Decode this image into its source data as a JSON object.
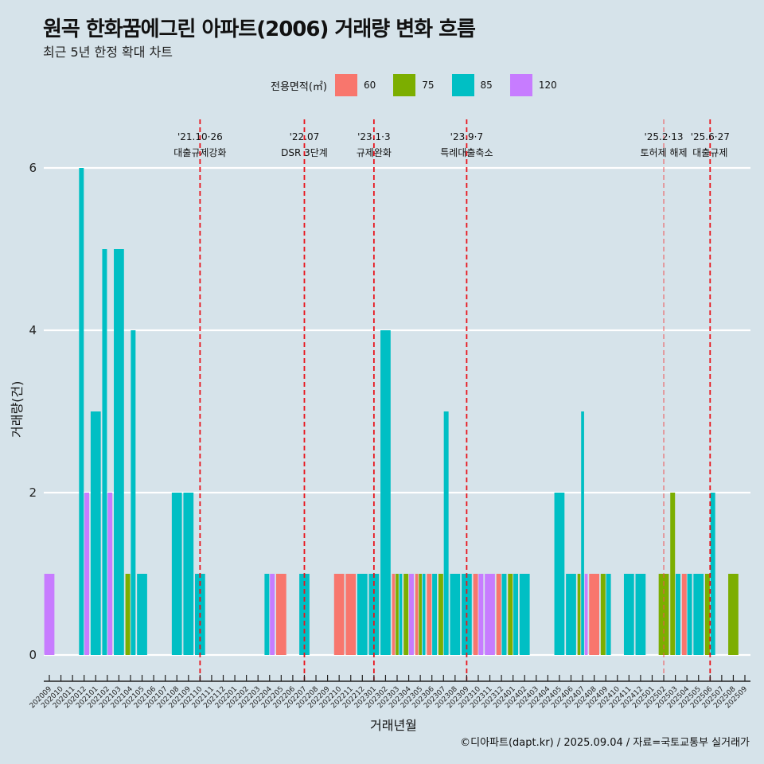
{
  "title": "원곡 한화꿈에그린 아파트(2006) 거래량 변화 흐름",
  "subtitle": "최근 5년 한정 확대 차트",
  "caption": "©디아파트(dapt.kr) / 2025.09.04 / 자료=국토교통부 실거래가",
  "legend": {
    "title": "전용면적(㎡)",
    "items": [
      {
        "label": "60",
        "color": "#F8766D"
      },
      {
        "label": "75",
        "color": "#7CAE00"
      },
      {
        "label": "85",
        "color": "#00BFC4"
      },
      {
        "label": "120",
        "color": "#C77CFF"
      }
    ]
  },
  "chart_data": {
    "type": "bar",
    "title": "원곡 한화꿈에그린 아파트(2006) 거래량 변화 흐름",
    "subtitle": "최근 5년 한정 확대 차트",
    "xlabel": "거래년월",
    "ylabel": "거래량(건)",
    "ylim": [
      0,
      6
    ],
    "yticks": [
      0,
      2,
      4,
      6
    ],
    "grid": "horizontal major",
    "legend_position": "top",
    "categories": [
      "202009",
      "202010",
      "202011",
      "202012",
      "202101",
      "202102",
      "202103",
      "202104",
      "202105",
      "202106",
      "202107",
      "202108",
      "202109",
      "202110",
      "202111",
      "202112",
      "202201",
      "202202",
      "202203",
      "202204",
      "202205",
      "202206",
      "202207",
      "202208",
      "202209",
      "202210",
      "202211",
      "202212",
      "202301",
      "202302",
      "202303",
      "202304",
      "202305",
      "202306",
      "202307",
      "202308",
      "202309",
      "202310",
      "202311",
      "202312",
      "202401",
      "202402",
      "202403",
      "202404",
      "202405",
      "202406",
      "202407",
      "202408",
      "202409",
      "202410",
      "202411",
      "202412",
      "202501",
      "202502",
      "202503",
      "202504",
      "202505",
      "202506",
      "202507",
      "202508",
      "202509"
    ],
    "bars": [
      {
        "month": "202009",
        "groups": [
          {
            "area": "120",
            "count": 1
          }
        ]
      },
      {
        "month": "202012",
        "groups": [
          {
            "area": "85",
            "count": 6
          },
          {
            "area": "120",
            "count": 2
          }
        ]
      },
      {
        "month": "202101",
        "groups": [
          {
            "area": "85",
            "count": 3
          }
        ]
      },
      {
        "month": "202102",
        "groups": [
          {
            "area": "85",
            "count": 5
          },
          {
            "area": "120",
            "count": 2
          }
        ]
      },
      {
        "month": "202103",
        "groups": [
          {
            "area": "85",
            "count": 5
          }
        ]
      },
      {
        "month": "202104",
        "groups": [
          {
            "area": "75",
            "count": 1
          },
          {
            "area": "85",
            "count": 4
          }
        ]
      },
      {
        "month": "202105",
        "groups": [
          {
            "area": "85",
            "count": 1
          }
        ]
      },
      {
        "month": "202108",
        "groups": [
          {
            "area": "85",
            "count": 2
          }
        ]
      },
      {
        "month": "202109",
        "groups": [
          {
            "area": "85",
            "count": 2
          }
        ]
      },
      {
        "month": "202110",
        "groups": [
          {
            "area": "85",
            "count": 1
          }
        ]
      },
      {
        "month": "202204",
        "groups": [
          {
            "area": "85",
            "count": 1
          },
          {
            "area": "120",
            "count": 1
          }
        ]
      },
      {
        "month": "202205",
        "groups": [
          {
            "area": "60",
            "count": 1
          }
        ]
      },
      {
        "month": "202207",
        "groups": [
          {
            "area": "85",
            "count": 1
          }
        ]
      },
      {
        "month": "202210",
        "groups": [
          {
            "area": "60",
            "count": 1
          }
        ]
      },
      {
        "month": "202211",
        "groups": [
          {
            "area": "60",
            "count": 1
          }
        ]
      },
      {
        "month": "202212",
        "groups": [
          {
            "area": "85",
            "count": 1
          }
        ]
      },
      {
        "month": "202301",
        "groups": [
          {
            "area": "85",
            "count": 1
          }
        ]
      },
      {
        "month": "202302",
        "groups": [
          {
            "area": "85",
            "count": 4
          }
        ]
      },
      {
        "month": "202303",
        "groups": [
          {
            "area": "60",
            "count": 1
          },
          {
            "area": "75",
            "count": 1
          },
          {
            "area": "85",
            "count": 1
          }
        ]
      },
      {
        "month": "202304",
        "groups": [
          {
            "area": "75",
            "count": 1
          },
          {
            "area": "120",
            "count": 1
          }
        ]
      },
      {
        "month": "202305",
        "groups": [
          {
            "area": "60",
            "count": 1
          },
          {
            "area": "75",
            "count": 1
          },
          {
            "area": "85",
            "count": 1
          }
        ]
      },
      {
        "month": "202306",
        "groups": [
          {
            "area": "60",
            "count": 1
          },
          {
            "area": "85",
            "count": 1
          }
        ]
      },
      {
        "month": "202307",
        "groups": [
          {
            "area": "75",
            "count": 1
          },
          {
            "area": "85",
            "count": 3
          }
        ]
      },
      {
        "month": "202308",
        "groups": [
          {
            "area": "85",
            "count": 1
          }
        ]
      },
      {
        "month": "202309",
        "groups": [
          {
            "area": "85",
            "count": 1
          }
        ]
      },
      {
        "month": "202310",
        "groups": [
          {
            "area": "60",
            "count": 1
          },
          {
            "area": "120",
            "count": 1
          }
        ]
      },
      {
        "month": "202311",
        "groups": [
          {
            "area": "120",
            "count": 1
          }
        ]
      },
      {
        "month": "202312",
        "groups": [
          {
            "area": "60",
            "count": 1
          },
          {
            "area": "85",
            "count": 1
          }
        ]
      },
      {
        "month": "202401",
        "groups": [
          {
            "area": "75",
            "count": 1
          },
          {
            "area": "85",
            "count": 1
          }
        ]
      },
      {
        "month": "202402",
        "groups": [
          {
            "area": "85",
            "count": 1
          }
        ]
      },
      {
        "month": "202405",
        "groups": [
          {
            "area": "85",
            "count": 2
          }
        ]
      },
      {
        "month": "202406",
        "groups": [
          {
            "area": "85",
            "count": 1
          }
        ]
      },
      {
        "month": "202407",
        "groups": [
          {
            "area": "75",
            "count": 1
          },
          {
            "area": "85",
            "count": 3
          },
          {
            "area": "120",
            "count": 1
          }
        ]
      },
      {
        "month": "202408",
        "groups": [
          {
            "area": "60",
            "count": 1
          }
        ]
      },
      {
        "month": "202409",
        "groups": [
          {
            "area": "75",
            "count": 1
          },
          {
            "area": "85",
            "count": 1
          }
        ]
      },
      {
        "month": "202411",
        "groups": [
          {
            "area": "85",
            "count": 1
          }
        ]
      },
      {
        "month": "202412",
        "groups": [
          {
            "area": "85",
            "count": 1
          }
        ]
      },
      {
        "month": "202502",
        "groups": [
          {
            "area": "75",
            "count": 1
          }
        ]
      },
      {
        "month": "202503",
        "groups": [
          {
            "area": "75",
            "count": 2
          },
          {
            "area": "85",
            "count": 1
          }
        ]
      },
      {
        "month": "202504",
        "groups": [
          {
            "area": "60",
            "count": 1
          },
          {
            "area": "85",
            "count": 1
          }
        ]
      },
      {
        "month": "202505",
        "groups": [
          {
            "area": "85",
            "count": 1
          }
        ]
      },
      {
        "month": "202506",
        "groups": [
          {
            "area": "75",
            "count": 1
          },
          {
            "area": "85",
            "count": 2
          }
        ]
      },
      {
        "month": "202508",
        "groups": [
          {
            "area": "75",
            "count": 1
          }
        ]
      }
    ],
    "annotations": [
      {
        "month": "202110",
        "date": "'21.10·26",
        "label": "대출규제강화",
        "style": "bold"
      },
      {
        "month": "202207",
        "date": "'22.07",
        "label": "DSR 3단계",
        "style": "bold"
      },
      {
        "month": "202301",
        "date": "'23.1·3",
        "label": "규제완화",
        "style": "bold"
      },
      {
        "month": "202309",
        "date": "'23.9·7",
        "label": "특례대출축소",
        "style": "bold"
      },
      {
        "month": "202502",
        "date": "'25.2·13",
        "label": "토허제 해제",
        "style": "thin"
      },
      {
        "month": "202506",
        "date": "'25.6·27",
        "label": "대출규제",
        "style": "bold"
      }
    ]
  }
}
